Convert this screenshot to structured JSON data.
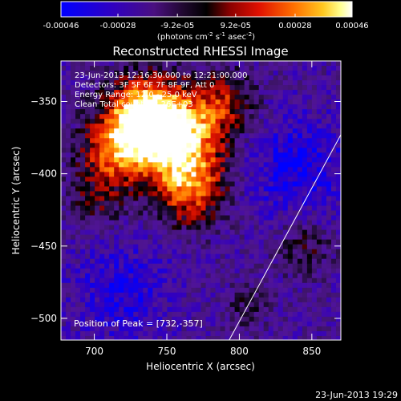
{
  "colorbar": {
    "ticks": [
      "-0.00046",
      "-0.00028",
      "-9.2e-05",
      "9.2e-05",
      "0.00028",
      "0.00046"
    ],
    "tick_values": [
      -0.00046,
      -0.00028,
      -9.2e-05,
      9.2e-05,
      0.00028,
      0.00046
    ],
    "units_line": "(photons cm",
    "units_exp1": "-2",
    "units_mid": " s",
    "units_exp2": "-1",
    "units_mid2": " asec",
    "units_exp3": "-2",
    "units_end": ")",
    "colors": [
      "#0000ff",
      "#2a00c8",
      "#5a0090",
      "#3a1a70",
      "#000000",
      "#a00000",
      "#e01000",
      "#ff6000",
      "#ffb000",
      "#ffff80",
      "#ffffff"
    ]
  },
  "chart_data": {
    "type": "heatmap",
    "title": "Reconstructed RHESSI Image",
    "xlabel": "Heliocentric X (arcsec)",
    "ylabel": "Heliocentric Y (arcsec)",
    "xlim": [
      677,
      870
    ],
    "ylim": [
      -515,
      -322
    ],
    "x_ticks": [
      700,
      750,
      800,
      850
    ],
    "y_ticks": [
      -350,
      -400,
      -450,
      -500
    ],
    "x_tick_labels": [
      "700",
      "750",
      "800",
      "850"
    ],
    "y_tick_labels": [
      "−350",
      "−400",
      "−450",
      "−500"
    ],
    "annotations": [
      "23-Jun-2013 12:16:30.000 to 12:21:00.000",
      "Detectors: 3F 5F 6F 7F 8F 9F, Att 0",
      "Energy Range: 12.0 - 25.0 keV",
      "Clean      Total counts: 8.26E+03"
    ],
    "peak_label": "Position of Peak = [732,-357]",
    "peak": [
      732,
      -357
    ],
    "limb_line": [
      [
        793,
        -515
      ],
      [
        870,
        -373
      ]
    ]
  },
  "footer": {
    "timestamp": "23-Jun-2013 19:29"
  }
}
